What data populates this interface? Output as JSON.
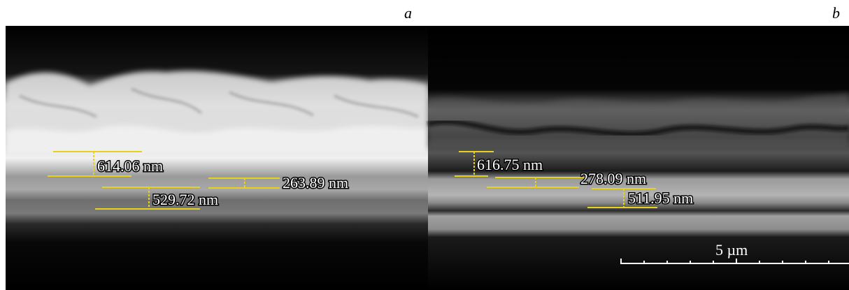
{
  "panels": [
    {
      "letter": "a",
      "measurements": [
        {
          "id": "a1",
          "label": "614.06 nm"
        },
        {
          "id": "a2",
          "label": "263.89 nm"
        },
        {
          "id": "a3",
          "label": "529.72 nm"
        }
      ]
    },
    {
      "letter": "b",
      "measurements": [
        {
          "id": "b1",
          "label": "616.75 nm"
        },
        {
          "id": "b2",
          "label": "278.09 nm"
        },
        {
          "id": "b3",
          "label": "511.95 nm"
        }
      ]
    }
  ],
  "scale_bar": {
    "label": "5 µm"
  },
  "colors": {
    "measurement_line": "#e6d21e",
    "scale_bar": "#ffffff"
  }
}
